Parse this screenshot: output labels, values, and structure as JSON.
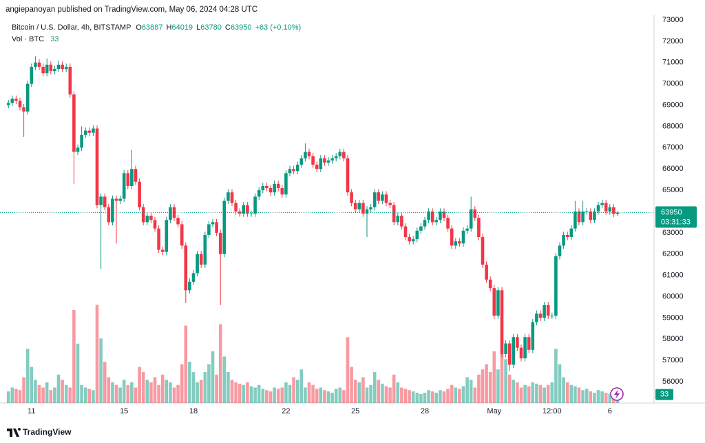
{
  "page": {
    "publisher_line": "angiepanoyan published on TradingView.com, May 06, 2024 04:28 UTC",
    "footer_brand": "TradingView"
  },
  "chart_data": {
    "type": "candlestick",
    "title": "Bitcoin / U.S. Dollar, 4h, BITSTAMP",
    "ohlc_labels": [
      "O",
      "H",
      "L",
      "C"
    ],
    "change_label": "+63 (+0.10%)",
    "volume_title": "Vol · BTC",
    "countdown": "03:31:33",
    "up_color": "#089981",
    "down_color": "#f23645",
    "grid": false,
    "ylim": [
      55000,
      73000
    ],
    "yticks": [
      56000,
      57000,
      58000,
      59000,
      60000,
      61000,
      62000,
      63000,
      64000,
      65000,
      66000,
      67000,
      68000,
      69000,
      70000,
      71000,
      72000,
      73000
    ],
    "volume_lim": [
      0,
      400
    ],
    "xticks": [
      {
        "value": 6,
        "label": "11"
      },
      {
        "value": 30,
        "label": "15"
      },
      {
        "value": 48,
        "label": "18"
      },
      {
        "value": 72,
        "label": "22"
      },
      {
        "value": 90,
        "label": "25"
      },
      {
        "value": 108,
        "label": "28"
      },
      {
        "value": 126,
        "label": "May"
      },
      {
        "value": 141,
        "label": "12:00"
      },
      {
        "value": 156,
        "label": "6"
      }
    ],
    "open": [
      69000,
      69100,
      69300,
      69200,
      68900,
      68700,
      70000,
      70800,
      71000,
      70800,
      70500,
      70900,
      70600,
      70700,
      70900,
      70700,
      70800,
      69500,
      66800,
      67000,
      67600,
      67800,
      67700,
      67900,
      64300,
      64700,
      64200,
      63500,
      64600,
      64500,
      64600,
      65800,
      65200,
      66000,
      65400,
      64200,
      63500,
      63800,
      63600,
      63200,
      62200,
      62100,
      63600,
      64200,
      63700,
      63400,
      62400,
      60300,
      60700,
      61100,
      62000,
      61500,
      62900,
      63400,
      63500,
      63000,
      62000,
      64500,
      64900,
      64400,
      64000,
      63900,
      64300,
      63900,
      63900,
      64700,
      65000,
      65200,
      65100,
      64900,
      65300,
      65100,
      64800,
      65800,
      66000,
      65900,
      66200,
      66500,
      66800,
      66600,
      66200,
      66000,
      66500,
      66300,
      66400,
      66500,
      66600,
      66800,
      66500,
      64900,
      64400,
      64100,
      64400,
      63900,
      64100,
      64200,
      64900,
      64500,
      64800,
      64400,
      64300,
      63500,
      63800,
      63300,
      62800,
      62600,
      62700,
      63100,
      63300,
      63600,
      64000,
      63500,
      63600,
      64000,
      63700,
      63200,
      62400,
      62600,
      62500,
      63100,
      63200,
      64100,
      63700,
      62800,
      61500,
      60800,
      60400,
      59100,
      60300,
      57300,
      57800,
      56800,
      58100,
      57600,
      57100,
      58100,
      57500,
      58800,
      59200,
      59000,
      59600,
      59100,
      59100,
      61900,
      62400,
      62900,
      62800,
      63200,
      64000,
      63500,
      64000,
      64000,
      63600,
      64000,
      64300,
      64400,
      64000,
      64200,
      63887
    ],
    "high": [
      69250,
      69450,
      69450,
      69350,
      69050,
      70150,
      70950,
      71300,
      71150,
      70950,
      71200,
      71050,
      70850,
      71100,
      71050,
      70950,
      70950,
      69650,
      67150,
      68000,
      67950,
      67950,
      68050,
      68050,
      64850,
      64850,
      64350,
      64750,
      64750,
      64750,
      65950,
      65950,
      66900,
      66150,
      65550,
      64350,
      63950,
      63950,
      63750,
      63350,
      62350,
      63750,
      64350,
      64350,
      63850,
      63550,
      62550,
      60850,
      61250,
      62150,
      62150,
      63050,
      63550,
      63650,
      63650,
      63150,
      64650,
      65050,
      65050,
      64550,
      64150,
      64450,
      64450,
      64050,
      64850,
      65150,
      65350,
      65350,
      65250,
      65450,
      65450,
      65250,
      65950,
      66150,
      66150,
      66350,
      66650,
      67200,
      66950,
      66750,
      66350,
      66650,
      66650,
      66550,
      66650,
      66750,
      66950,
      66950,
      66650,
      65050,
      64550,
      64550,
      64550,
      64250,
      64350,
      65050,
      65050,
      64950,
      64950,
      64550,
      64450,
      63950,
      63950,
      63450,
      62950,
      62850,
      63250,
      63450,
      63750,
      64150,
      64150,
      63750,
      64150,
      64150,
      63850,
      63350,
      62750,
      62750,
      63250,
      63350,
      64700,
      64250,
      63850,
      62950,
      61650,
      60950,
      60550,
      60450,
      60450,
      57950,
      57950,
      58250,
      58250,
      57750,
      58250,
      58250,
      58950,
      59350,
      59350,
      59750,
      59750,
      59250,
      62050,
      62550,
      63050,
      63050,
      63350,
      64500,
      64150,
      64500,
      64150,
      64150,
      64150,
      64450,
      64550,
      64550,
      64350,
      64350,
      64019
    ],
    "low": [
      68850,
      68950,
      69050,
      68750,
      67500,
      68550,
      69850,
      70650,
      70650,
      70350,
      70350,
      70450,
      70450,
      70550,
      70550,
      70550,
      69350,
      65300,
      66650,
      66850,
      67450,
      67550,
      67550,
      64150,
      61300,
      64050,
      63350,
      63350,
      62500,
      64350,
      64450,
      65050,
      65050,
      65250,
      64050,
      63350,
      63350,
      63450,
      63050,
      62050,
      61950,
      61950,
      63450,
      63550,
      63250,
      62250,
      59700,
      60150,
      60550,
      60950,
      61350,
      61350,
      62750,
      63250,
      62850,
      59600,
      61850,
      64350,
      64250,
      63850,
      63750,
      63750,
      63750,
      63750,
      63750,
      64550,
      64850,
      64950,
      64750,
      64750,
      64950,
      64650,
      64650,
      65650,
      65750,
      65750,
      66050,
      66350,
      66450,
      66050,
      65850,
      65850,
      66150,
      66150,
      66250,
      66350,
      66450,
      66350,
      64750,
      64250,
      63950,
      63950,
      63750,
      62800,
      63950,
      64050,
      64350,
      64350,
      64250,
      64150,
      63350,
      63350,
      63150,
      62650,
      62450,
      62450,
      62550,
      62950,
      63150,
      63450,
      63350,
      63350,
      63450,
      63550,
      63050,
      62250,
      62250,
      62350,
      62350,
      62950,
      63050,
      63550,
      62650,
      61350,
      60650,
      60250,
      58950,
      58950,
      57150,
      57150,
      56500,
      56650,
      57450,
      56950,
      56950,
      57350,
      57350,
      58650,
      58850,
      58850,
      58950,
      58950,
      58950,
      61750,
      62250,
      62650,
      62650,
      63050,
      63350,
      63350,
      63850,
      63450,
      63450,
      63850,
      64150,
      63850,
      63850,
      63737,
      63780
    ],
    "close": [
      69100,
      69300,
      69200,
      68900,
      68700,
      70000,
      70800,
      71000,
      70800,
      70500,
      70900,
      70600,
      70700,
      70900,
      70700,
      70800,
      69500,
      66800,
      67000,
      67600,
      67800,
      67700,
      67900,
      64300,
      64700,
      64200,
      63500,
      64600,
      64500,
      64600,
      65800,
      65200,
      66000,
      65400,
      64200,
      63500,
      63800,
      63600,
      63200,
      62200,
      62100,
      63600,
      64200,
      63700,
      63400,
      62400,
      60300,
      60700,
      61100,
      62000,
      61500,
      62900,
      63400,
      63500,
      63000,
      62000,
      64500,
      64900,
      64400,
      64000,
      63900,
      64300,
      63900,
      63900,
      64700,
      65000,
      65200,
      65100,
      64900,
      65300,
      65100,
      64800,
      65800,
      66000,
      65900,
      66200,
      66500,
      66800,
      66600,
      66200,
      66000,
      66500,
      66300,
      66400,
      66500,
      66600,
      66800,
      66500,
      64900,
      64400,
      64100,
      64400,
      63900,
      64100,
      64200,
      64900,
      64500,
      64800,
      64400,
      64300,
      63500,
      63800,
      63300,
      62800,
      62600,
      62700,
      63100,
      63300,
      63600,
      64000,
      63500,
      63600,
      64000,
      63700,
      63200,
      62400,
      62600,
      62500,
      63100,
      63200,
      64100,
      63700,
      62800,
      61500,
      60800,
      60400,
      59100,
      60300,
      57300,
      57800,
      56800,
      58100,
      57600,
      57100,
      58100,
      57500,
      58800,
      59200,
      59000,
      59600,
      59100,
      59100,
      61900,
      62400,
      62900,
      62800,
      63200,
      64000,
      63500,
      64000,
      64000,
      63600,
      64000,
      64300,
      64400,
      64000,
      64200,
      63887,
      63950
    ],
    "volume": [
      45,
      60,
      55,
      50,
      100,
      210,
      140,
      90,
      70,
      60,
      80,
      50,
      60,
      110,
      90,
      70,
      60,
      360,
      230,
      70,
      60,
      55,
      50,
      380,
      250,
      160,
      100,
      80,
      70,
      60,
      90,
      70,
      80,
      60,
      140,
      120,
      90,
      80,
      100,
      70,
      110,
      90,
      80,
      60,
      70,
      150,
      300,
      160,
      120,
      80,
      90,
      120,
      150,
      200,
      110,
      305,
      180,
      120,
      90,
      80,
      75,
      70,
      80,
      65,
      60,
      70,
      55,
      50,
      45,
      60,
      55,
      60,
      80,
      70,
      100,
      90,
      130,
      60,
      80,
      70,
      55,
      60,
      50,
      45,
      40,
      55,
      60,
      50,
      255,
      140,
      90,
      80,
      100,
      60,
      70,
      120,
      90,
      75,
      65,
      60,
      110,
      80,
      60,
      55,
      50,
      45,
      40,
      35,
      40,
      50,
      45,
      40,
      50,
      45,
      55,
      70,
      60,
      55,
      65,
      100,
      90,
      60,
      110,
      130,
      150,
      120,
      200,
      130,
      190,
      170,
      110,
      90,
      80,
      60,
      70,
      65,
      80,
      75,
      70,
      60,
      70,
      80,
      210,
      150,
      100,
      80,
      70,
      65,
      60,
      50,
      55,
      45,
      40,
      50,
      45,
      40,
      35,
      40,
      33
    ]
  }
}
